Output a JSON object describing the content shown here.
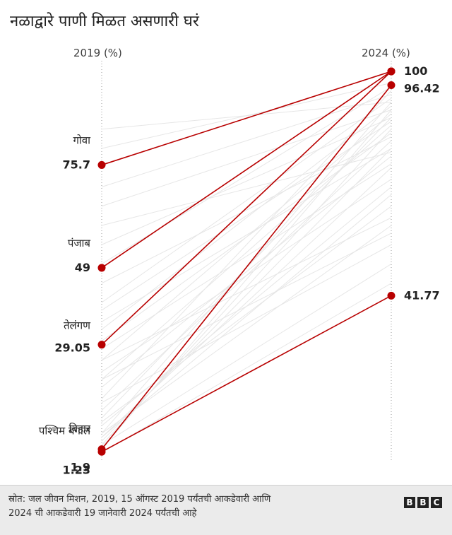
{
  "title": "नळाद्वारे पाणी मिळत असणारी घरं",
  "chart_data": {
    "type": "slope",
    "left_label": "2019 (%)",
    "right_label": "2024 (%)",
    "ylim": [
      0,
      100
    ],
    "highlight_color": "#b80000",
    "background_color": "#e6e6e6",
    "highlighted": [
      {
        "name": "गोवा",
        "start_label": "75.7",
        "start": 75.7,
        "end": 100
      },
      {
        "name": "पंजाब",
        "start_label": "49",
        "start": 49,
        "end": 100
      },
      {
        "name": "तेलंगण",
        "start_label": "29.05",
        "start": 29.05,
        "end": 100
      },
      {
        "name": "बिहार",
        "start_label": "1.9",
        "start": 1.9,
        "end": 96.42
      },
      {
        "name": "पश्चिम बंगाल",
        "start_label": "1.23",
        "start": 1.23,
        "end": 41.77
      }
    ],
    "end_labels": [
      "100",
      "96.42",
      "41.77"
    ],
    "background_series": [
      [
        2,
        90
      ],
      [
        3,
        85
      ],
      [
        4,
        80
      ],
      [
        5,
        75
      ],
      [
        6,
        92
      ],
      [
        8,
        70
      ],
      [
        10,
        88
      ],
      [
        12,
        82
      ],
      [
        15,
        95
      ],
      [
        18,
        78
      ],
      [
        20,
        86
      ],
      [
        22,
        72
      ],
      [
        25,
        89
      ],
      [
        28,
        76
      ],
      [
        30,
        84
      ],
      [
        33,
        91
      ],
      [
        35,
        80
      ],
      [
        38,
        87
      ],
      [
        40,
        93
      ],
      [
        45,
        83
      ],
      [
        50,
        96
      ],
      [
        55,
        88
      ],
      [
        60,
        79
      ],
      [
        65,
        90
      ],
      [
        70,
        94
      ],
      [
        80,
        97
      ],
      [
        85,
        92
      ],
      [
        3,
        50
      ],
      [
        6,
        60
      ],
      [
        9,
        65
      ],
      [
        14,
        55
      ],
      [
        20,
        58
      ],
      [
        1,
        45
      ],
      [
        5,
        68
      ],
      [
        25,
        62
      ]
    ]
  },
  "footer": {
    "source_line1": "स्रोत: जल जीवन मिशन, 2019, 15 ऑगस्ट 2019 पर्यंतची आकडेवारी आणि",
    "source_line2": "2024 ची आकडेवारी 19 जानेवारी 2024 पर्यंतची आहे",
    "logo": [
      "B",
      "B",
      "C"
    ]
  }
}
